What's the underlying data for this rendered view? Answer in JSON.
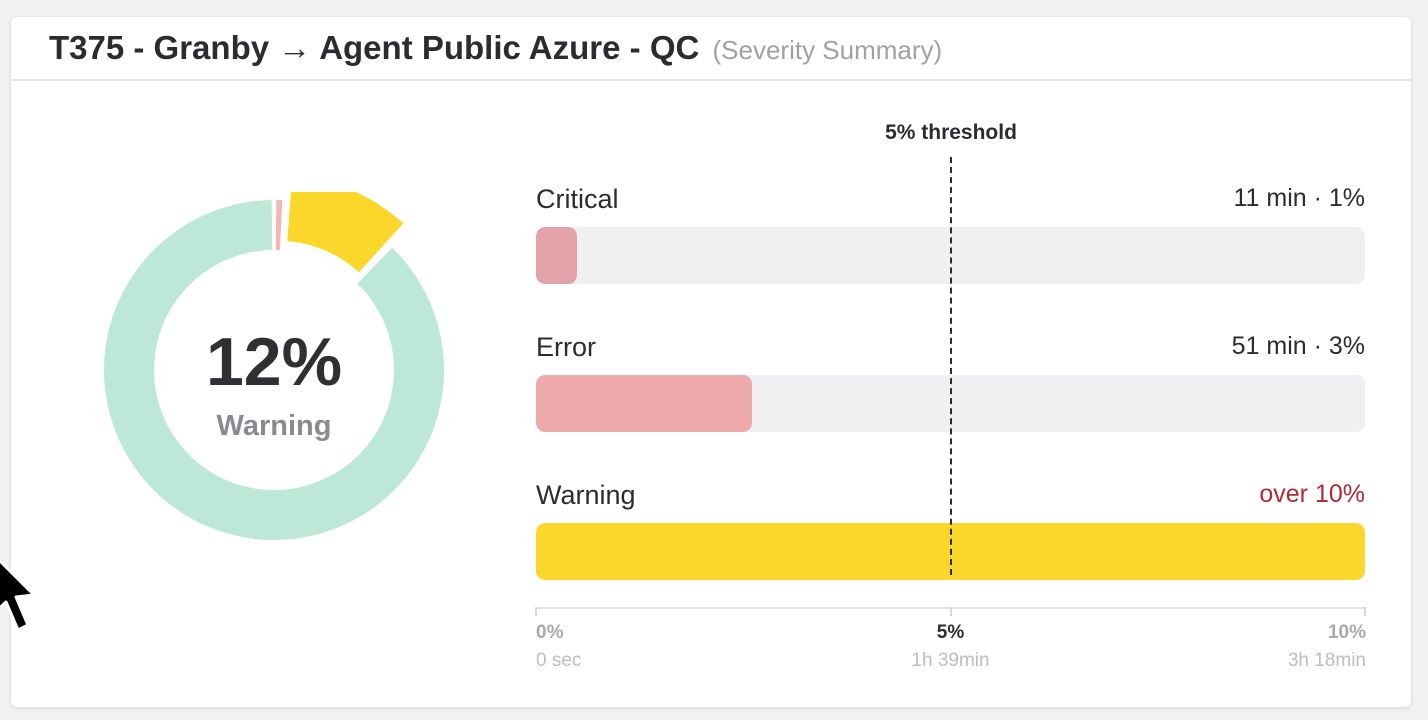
{
  "header": {
    "title": "T375 - Granby → Agent Public Azure - QC",
    "subtitle": "(Severity Summary)"
  },
  "donut": {
    "value_text": "12%",
    "label": "Warning",
    "segments": [
      {
        "name": "Critical",
        "percent": 1,
        "color": "#f5b5b5"
      },
      {
        "name": "Warning",
        "percent": 11,
        "color": "#fbd72b"
      },
      {
        "name": "OK",
        "percent": 88,
        "color": "#bde8d8"
      }
    ]
  },
  "threshold": {
    "label": "5% threshold",
    "percent": 5
  },
  "bars": [
    {
      "name": "Critical",
      "value": "11 min · 1%",
      "fill_fraction": 0.05,
      "color": "#e4a3a8",
      "value_color": "#2c2c30"
    },
    {
      "name": "Error",
      "value": "51 min · 3%",
      "fill_fraction": 0.26,
      "color": "#eeaaaa",
      "value_color": "#2c2c30"
    },
    {
      "name": "Warning",
      "value": "over 10%",
      "fill_fraction": 1.0,
      "color": "#fbd72b",
      "value_color": "#b02a35"
    }
  ],
  "axis": {
    "ticks": [
      {
        "pct": "0%",
        "time": "0 sec",
        "position": 0
      },
      {
        "pct": "5%",
        "time": "1h 39min",
        "position": 0.5
      },
      {
        "pct": "10%",
        "time": "3h 18min",
        "position": 1
      }
    ]
  },
  "colors": {
    "accent_warning": "#fbd72b",
    "ok": "#bde8d8",
    "critical_text": "#b02a35"
  }
}
